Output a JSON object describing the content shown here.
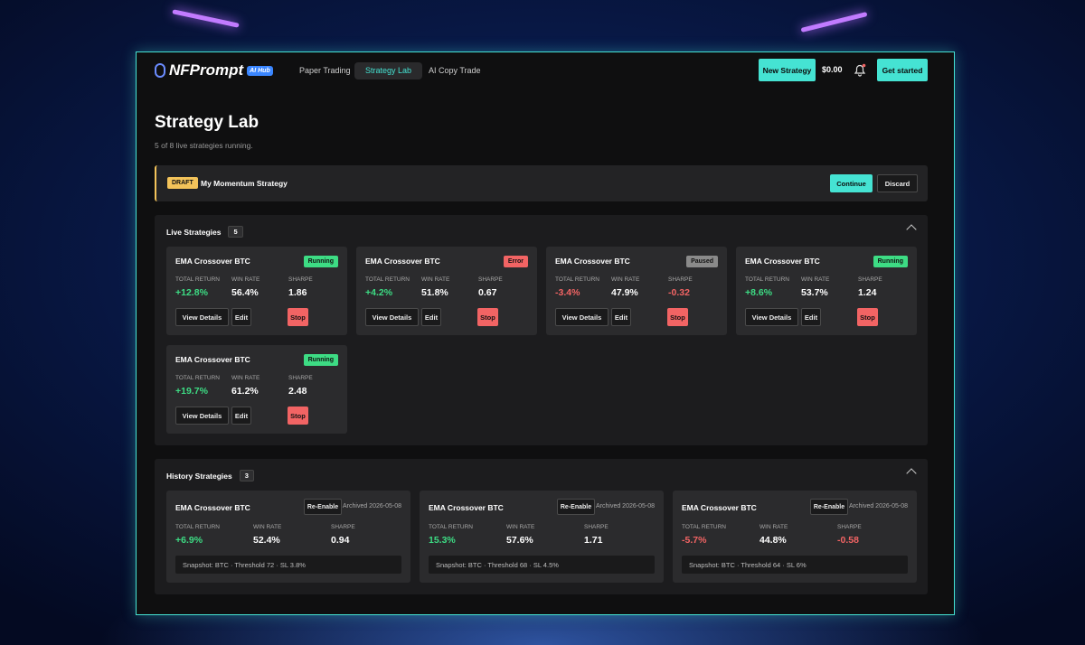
{
  "nav": {
    "logo": "NFPrompt",
    "logo_badge": "AI Hub",
    "links": [
      "Paper Trading",
      "Strategy Lab",
      "AI Copy Trade"
    ],
    "active_link": 1,
    "new_strategy": "New Strategy",
    "balance": "$0.00",
    "get_started": "Get started"
  },
  "header": {
    "title": "Strategy Lab",
    "subtitle": "5 of 8 live strategies running."
  },
  "draft": {
    "badge": "DRAFT",
    "name": "My Momentum Strategy",
    "continue": "Continue",
    "discard": "Discard"
  },
  "live": {
    "title": "Live Strategies",
    "count": "5",
    "cards": [
      {
        "name": "EMA Crossover BTC",
        "status": "Running",
        "status_color": "#3ddc84",
        "metrics": [
          {
            "label": "TOTAL RETURN",
            "value": "+12.8%"
          },
          {
            "label": "WIN RATE",
            "value": "56.4%"
          },
          {
            "label": "SHARPE",
            "value": "1.86"
          }
        ],
        "buttons": [
          "View Details",
          "Edit",
          "Stop"
        ]
      },
      {
        "name": "EMA Crossover BTC",
        "status": "Error",
        "status_color": "#f26464",
        "metrics": [
          {
            "label": "TOTAL RETURN",
            "value": "+4.2%"
          },
          {
            "label": "WIN RATE",
            "value": "51.8%"
          },
          {
            "label": "SHARPE",
            "value": "0.67"
          }
        ],
        "buttons": [
          "View Details",
          "Edit",
          "Stop"
        ]
      },
      {
        "name": "EMA Crossover BTC",
        "status": "Paused",
        "status_color": "#8a8a8a",
        "metrics": [
          {
            "label": "TOTAL RETURN",
            "value": "-3.4%"
          },
          {
            "label": "WIN RATE",
            "value": "47.9%"
          },
          {
            "label": "SHARPE",
            "value": "-0.32"
          }
        ],
        "buttons": [
          "View Details",
          "Edit",
          "Stop"
        ]
      },
      {
        "name": "EMA Crossover BTC",
        "status": "Running",
        "status_color": "#3ddc84",
        "metrics": [
          {
            "label": "TOTAL RETURN",
            "value": "+8.6%"
          },
          {
            "label": "WIN RATE",
            "value": "53.7%"
          },
          {
            "label": "SHARPE",
            "value": "1.24"
          }
        ],
        "buttons": [
          "View Details",
          "Edit",
          "Stop"
        ]
      },
      {
        "name": "EMA Crossover BTC",
        "status": "Running",
        "status_color": "#3ddc84",
        "metrics": [
          {
            "label": "TOTAL RETURN",
            "value": "+19.7%"
          },
          {
            "label": "WIN RATE",
            "value": "61.2%"
          },
          {
            "label": "SHARPE",
            "value": "2.48"
          }
        ],
        "buttons": [
          "View Details",
          "Edit",
          "Stop"
        ]
      }
    ]
  },
  "history": {
    "title": "History Strategies",
    "count": "3",
    "cards": [
      {
        "name": "EMA Crossover BTC",
        "button": "Re-Enable",
        "archived": "Archived 2026-05-08",
        "metrics": [
          {
            "label": "TOTAL RETURN",
            "value": "+6.9%"
          },
          {
            "label": "WIN RATE",
            "value": "52.4%"
          },
          {
            "label": "SHARPE",
            "value": "0.94"
          }
        ],
        "snapshot": "Snapshot: BTC · Threshold 72 · SL 3.8%"
      },
      {
        "name": "EMA Crossover BTC",
        "button": "Re-Enable",
        "archived": "Archived 2026-05-08",
        "metrics": [
          {
            "label": "TOTAL RETURN",
            "value": "15.3%"
          },
          {
            "label": "WIN RATE",
            "value": "57.6%"
          },
          {
            "label": "SHARPE",
            "value": "1.71"
          }
        ],
        "snapshot": "Snapshot: BTC · Threshold 68 · SL 4.5%"
      },
      {
        "name": "EMA Crossover BTC",
        "button": "Re-Enable",
        "archived": "Archived 2026-05-08",
        "metrics": [
          {
            "label": "TOTAL RETURN",
            "value": "-5.7%"
          },
          {
            "label": "WIN RATE",
            "value": "44.8%"
          },
          {
            "label": "SHARPE",
            "value": "-0.58"
          }
        ],
        "snapshot": "Snapshot: BTC · Threshold 64 · SL 6%"
      }
    ]
  }
}
